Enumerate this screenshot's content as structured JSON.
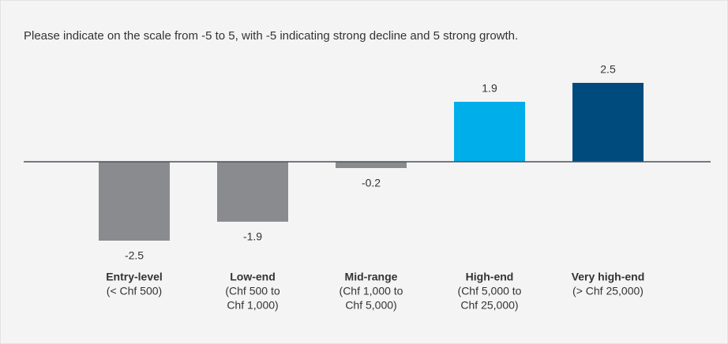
{
  "chart_data": {
    "type": "bar",
    "title": "Please indicate on the scale from -5 to 5, with -5 indicating strong decline and 5 strong growth.",
    "categories": [
      "Entry-level",
      "Low-end",
      "Mid-range",
      "High-end",
      "Very high-end"
    ],
    "sublabels": [
      [
        "(< Chf 500)"
      ],
      [
        "(Chf 500 to",
        "Chf 1,000)"
      ],
      [
        "(Chf 1,000 to",
        "Chf 5,000)"
      ],
      [
        "(Chf 5,000 to",
        "Chf 25,000)"
      ],
      [
        "(> Chf 25,000)"
      ]
    ],
    "values": [
      -2.5,
      -1.9,
      -0.2,
      1.9,
      2.5
    ],
    "colors": [
      "#898b8e",
      "#898b8e",
      "#898b8e",
      "#00aee9",
      "#004b7d"
    ]
  }
}
